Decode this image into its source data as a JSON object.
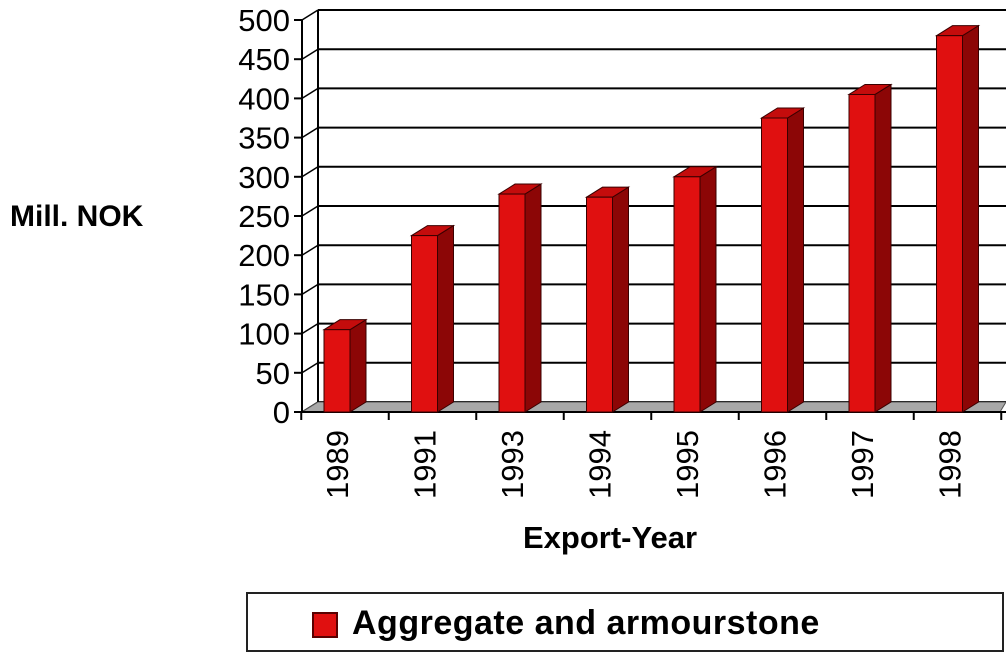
{
  "chart_data": {
    "type": "bar",
    "categories": [
      "1989",
      "1991",
      "1993",
      "1994",
      "1995",
      "1996",
      "1997",
      "1998"
    ],
    "series": [
      {
        "name": "Aggregate and armourstone",
        "values": [
          105,
          225,
          278,
          274,
          300,
          375,
          405,
          480
        ]
      }
    ],
    "xlabel": "Export-Year",
    "ylabel": "Mill. NOK",
    "ylim": [
      0,
      500
    ],
    "yticks": [
      "0",
      "50",
      "100",
      "150",
      "200",
      "250",
      "300",
      "350",
      "400",
      "450",
      "500"
    ],
    "grid": true,
    "legend_position": "bottom",
    "colors": {
      "bar_front": "#e01010",
      "bar_side": "#8c0606",
      "bar_top": "#c40c0c",
      "floor": "#a8a8a8"
    }
  }
}
